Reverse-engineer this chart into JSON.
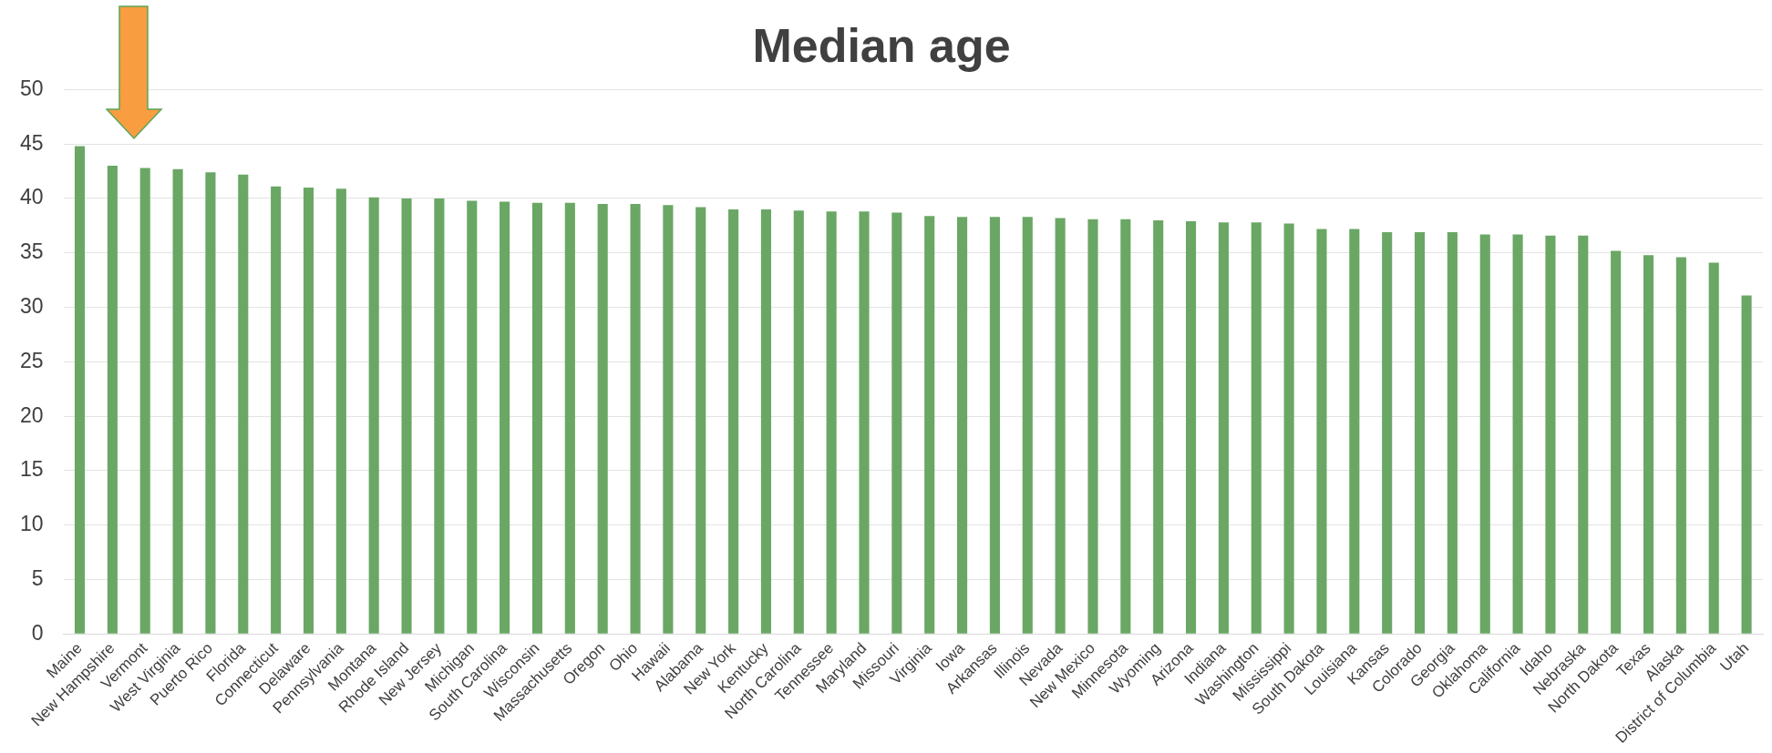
{
  "chart_data": {
    "type": "bar",
    "title": "Median age",
    "categories": [
      "Maine",
      "New Hampshire",
      "Vermont",
      "West Virginia",
      "Puerto Rico",
      "Florida",
      "Connecticut",
      "Delaware",
      "Pennsylvania",
      "Montana",
      "Rhode Island",
      "New Jersey",
      "Michigan",
      "South Carolina",
      "Wisconsin",
      "Massachusetts",
      "Oregon",
      "Ohio",
      "Hawaii",
      "Alabama",
      "New York",
      "Kentucky",
      "North Carolina",
      "Tennessee",
      "Maryland",
      "Missouri",
      "Virginia",
      "Iowa",
      "Arkansas",
      "Illinois",
      "Nevada",
      "New Mexico",
      "Minnesota",
      "Wyoming",
      "Arizona",
      "Indiana",
      "Washington",
      "Mississippi",
      "South Dakota",
      "Louisiana",
      "Kansas",
      "Colorado",
      "Georgia",
      "Oklahoma",
      "California",
      "Idaho",
      "Nebraska",
      "North Dakota",
      "Texas",
      "Alaska",
      "District of Columbia",
      "Utah"
    ],
    "values": [
      44.8,
      43.0,
      42.8,
      42.7,
      42.4,
      42.2,
      41.1,
      41.0,
      40.9,
      40.1,
      40.0,
      40.0,
      39.8,
      39.7,
      39.6,
      39.6,
      39.5,
      39.5,
      39.4,
      39.2,
      39.0,
      39.0,
      38.9,
      38.8,
      38.8,
      38.7,
      38.4,
      38.3,
      38.3,
      38.3,
      38.2,
      38.1,
      38.1,
      38.0,
      37.9,
      37.8,
      37.8,
      37.7,
      37.2,
      37.2,
      36.9,
      36.9,
      36.9,
      36.7,
      36.7,
      36.6,
      36.6,
      35.2,
      34.8,
      34.6,
      34.1,
      31.1
    ],
    "color": "#6aa765",
    "ylim": [
      0,
      50
    ],
    "yticks": [
      0,
      5,
      10,
      15,
      20,
      25,
      30,
      35,
      40,
      45,
      50
    ],
    "grid": "y",
    "legend": false
  }
}
